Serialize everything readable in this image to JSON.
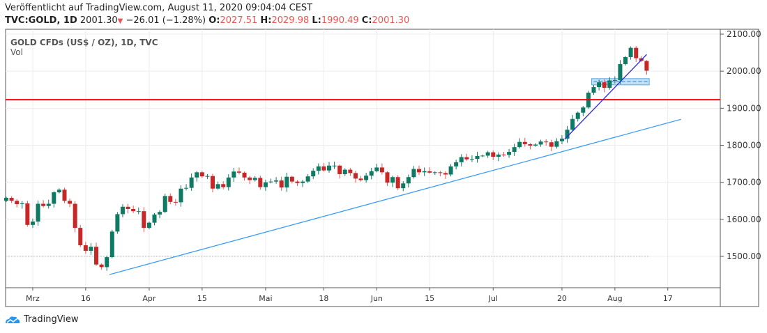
{
  "header": {
    "published": "Veröffentlicht auf TradingView.com, August 11, 2020 09:04:04 CEST",
    "symbol": "TVC:GOLD, 1D",
    "last": "2001.30",
    "change": "−26.01 (−1.28%)",
    "o_label": "O:",
    "o": "2027.51",
    "h_label": "H:",
    "h": "2029.98",
    "l_label": "L:",
    "l": "1990.49",
    "c_label": "C:",
    "c": "2001.30"
  },
  "legend": {
    "title": "GOLD CFDs (US$ / OZ), 1D, TVC",
    "vol": "Vol"
  },
  "logo": {
    "text": "TradingView"
  },
  "colors": {
    "up": "#26a69a",
    "upDark": "#0e7a63",
    "down": "#c62828",
    "accent": "#ef5350"
  },
  "chart_data": {
    "type": "candlestick",
    "title": "GOLD CFDs (US$ / OZ), 1D, TVC",
    "ylim": [
      1420,
      2110
    ],
    "yticks": [
      "2100.00",
      "2000.00",
      "1900.00",
      "1800.00",
      "1700.00",
      "1600.00",
      "1500.00"
    ],
    "yvalues": [
      2100,
      2000,
      1900,
      1800,
      1700,
      1600,
      1500
    ],
    "xticks": [
      {
        "label": "Mrz",
        "i": 5
      },
      {
        "label": "16",
        "i": 15
      },
      {
        "label": "Apr",
        "i": 27
      },
      {
        "label": "15",
        "i": 37
      },
      {
        "label": "Mai",
        "i": 49
      },
      {
        "label": "18",
        "i": 60
      },
      {
        "label": "Jun",
        "i": 70
      },
      {
        "label": "15",
        "i": 80
      },
      {
        "label": "Jul",
        "i": 92
      },
      {
        "label": "20",
        "i": 105
      },
      {
        "label": "Aug",
        "i": 115
      },
      {
        "label": "17",
        "i": 125
      }
    ],
    "first_open": 1650,
    "closes": [
      1658,
      1650,
      1641,
      1643,
      1585,
      1594,
      1642,
      1636,
      1642,
      1673,
      1680,
      1650,
      1642,
      1577,
      1530,
      1515,
      1526,
      1478,
      1471,
      1498,
      1567,
      1614,
      1634,
      1628,
      1622,
      1622,
      1577,
      1591,
      1613,
      1620,
      1663,
      1647,
      1646,
      1683,
      1685,
      1713,
      1727,
      1716,
      1717,
      1683,
      1695,
      1687,
      1713,
      1729,
      1726,
      1713,
      1706,
      1712,
      1687,
      1700,
      1702,
      1705,
      1686,
      1715,
      1702,
      1698,
      1702,
      1716,
      1731,
      1743,
      1732,
      1745,
      1745,
      1722,
      1734,
      1725,
      1710,
      1706,
      1718,
      1730,
      1740,
      1727,
      1699,
      1714,
      1684,
      1697,
      1714,
      1736,
      1727,
      1730,
      1726,
      1727,
      1725,
      1721,
      1743,
      1754,
      1768,
      1762,
      1763,
      1771,
      1772,
      1781,
      1769,
      1775,
      1774,
      1782,
      1795,
      1809,
      1803,
      1799,
      1802,
      1810,
      1808,
      1796,
      1811,
      1818,
      1842,
      1871,
      1888,
      1902,
      1942,
      1957,
      1970,
      1955,
      1975,
      1976,
      2019,
      2038,
      2063,
      2035,
      2028,
      2001.3
    ],
    "last_candle": {
      "open": 2027.51,
      "high": 2029.98,
      "low": 1990.49,
      "close": 2001.3
    },
    "horizontal_lines": [
      {
        "price": 1923,
        "color": "#ff0000"
      },
      {
        "price": 1500,
        "color": "#bbbbbb",
        "style": "dotted"
      }
    ],
    "trendlines": [
      {
        "from": [
          19.5,
          1451
        ],
        "to": [
          127.5,
          1870
        ],
        "color": "#3d9df5"
      },
      {
        "from": [
          105.5,
          1816
        ],
        "to": [
          121,
          2045
        ],
        "color": "#2a2ae6"
      }
    ],
    "range_box": {
      "from_i": 111,
      "to_i": 121.5,
      "top": 1980,
      "bottom": 1963,
      "mid": 1972
    }
  }
}
